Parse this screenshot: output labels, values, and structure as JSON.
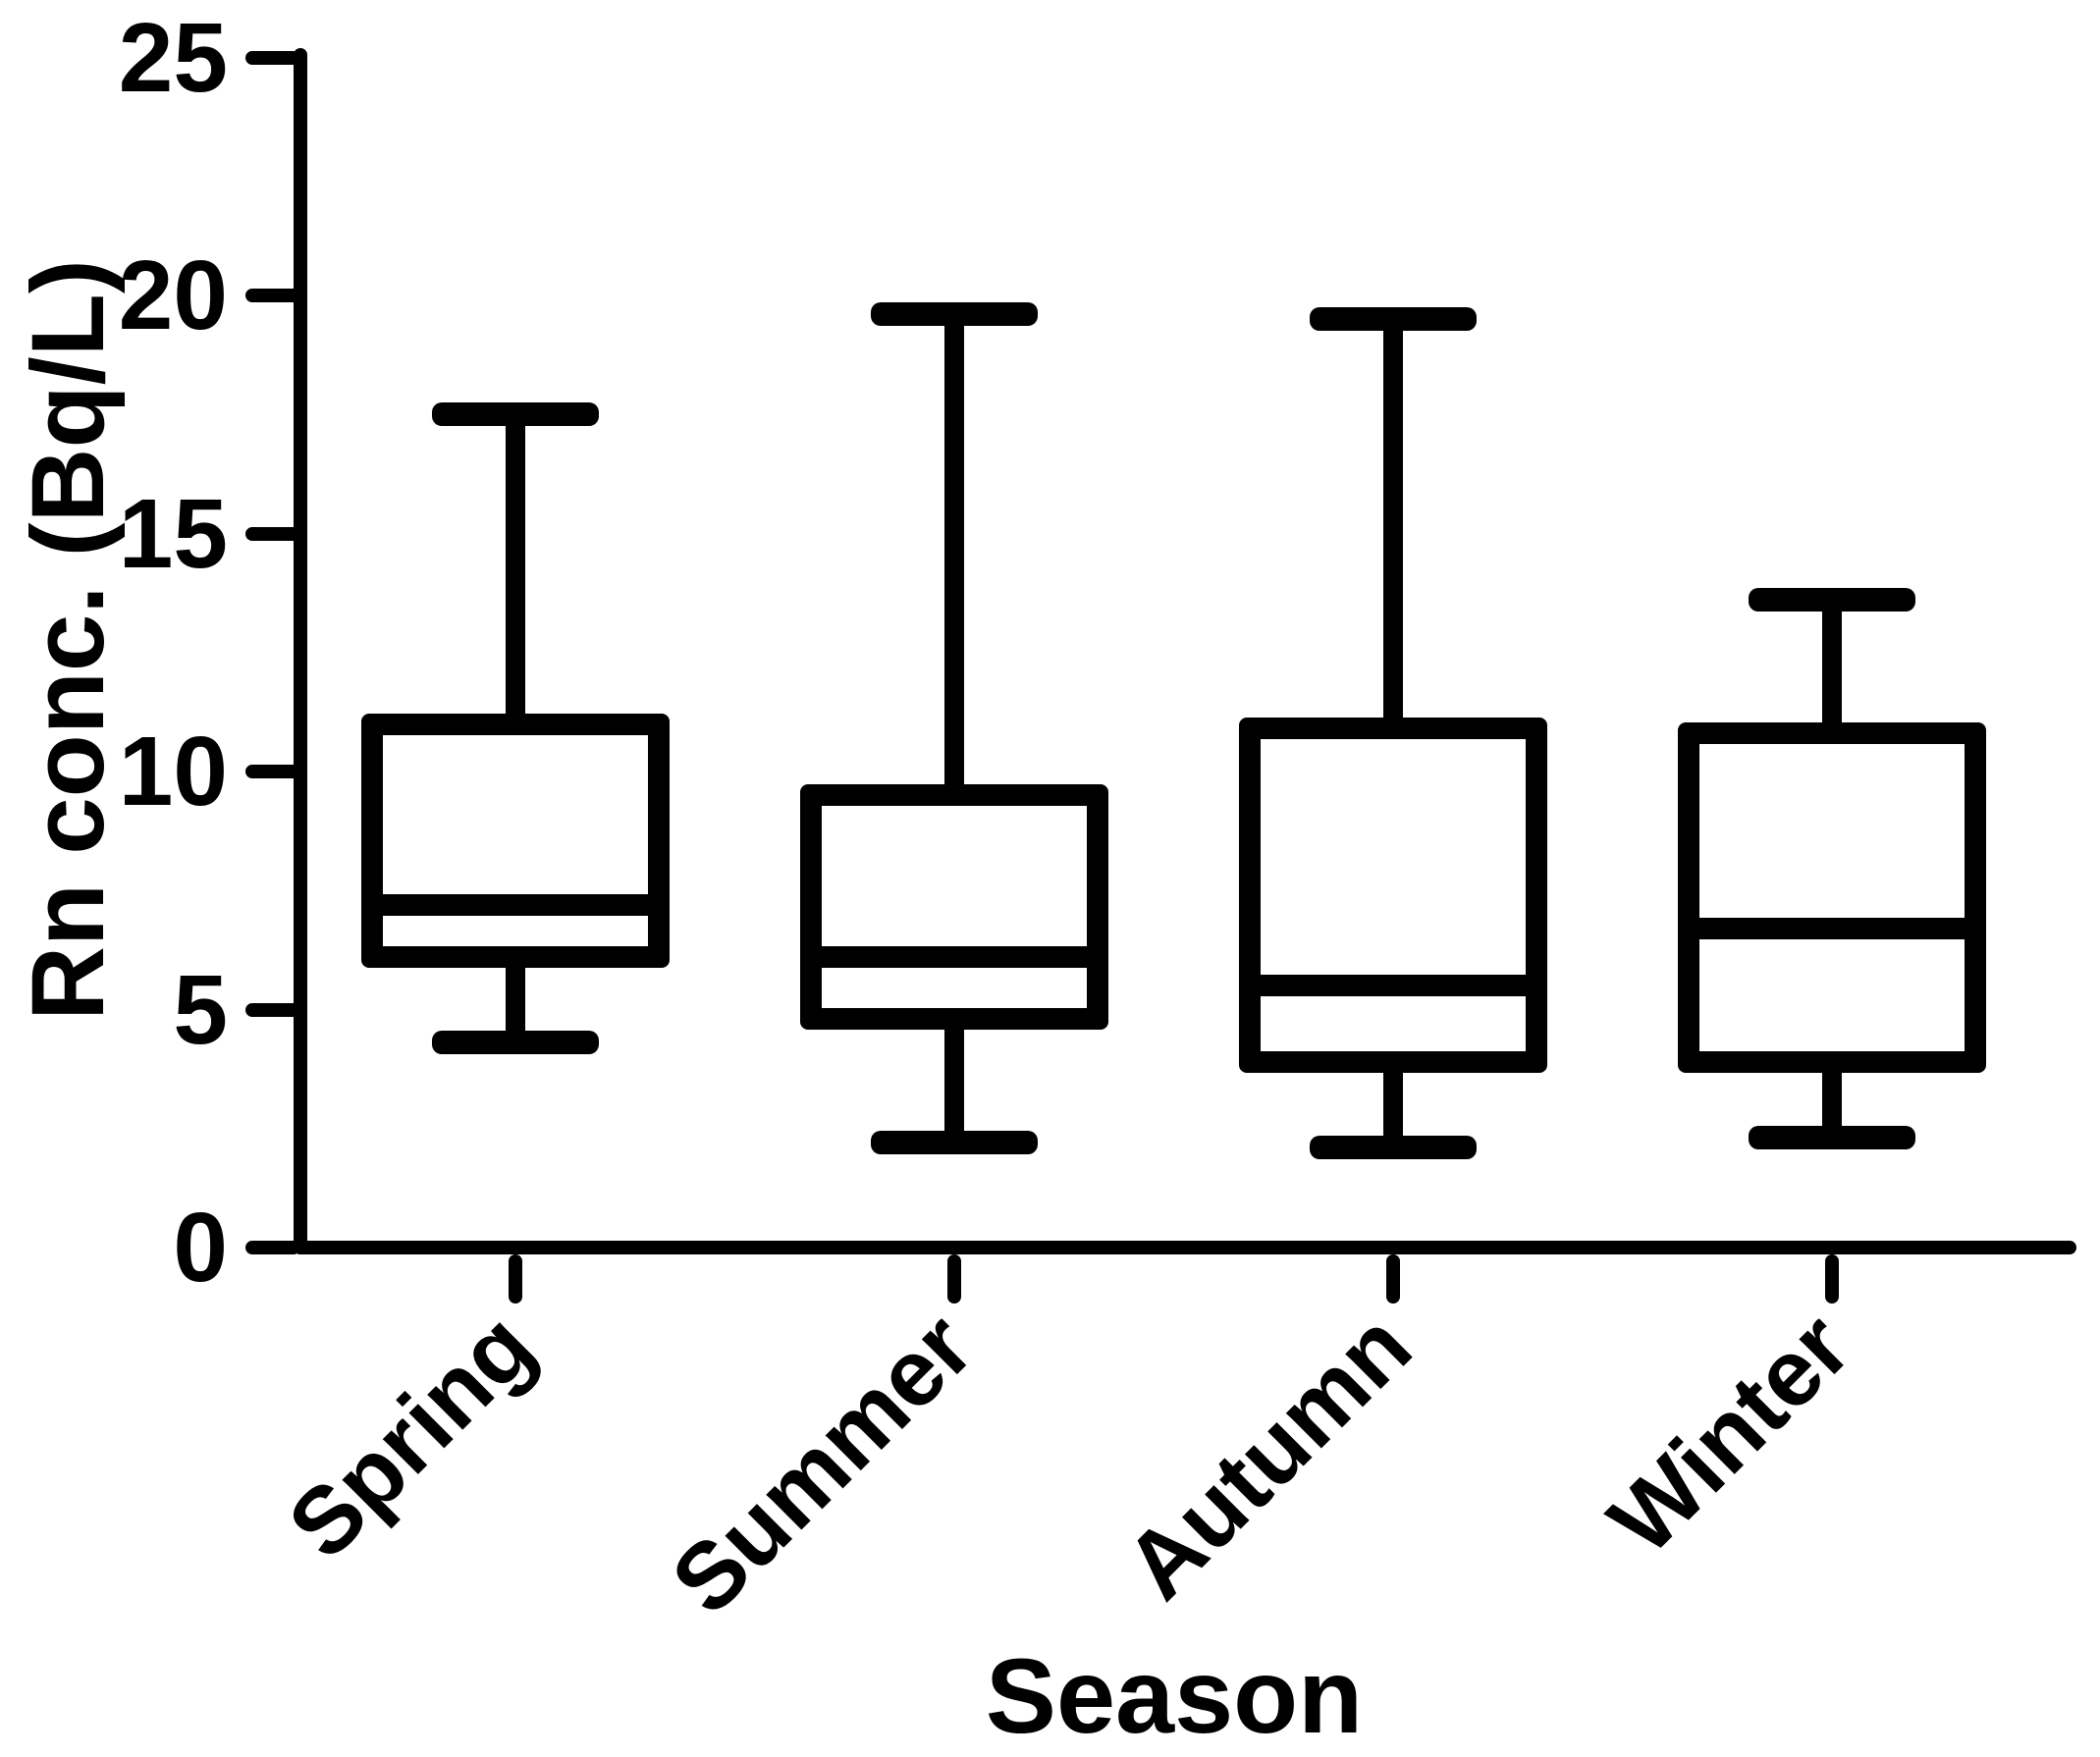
{
  "chart_data": {
    "type": "box",
    "title": "",
    "xlabel": "Season",
    "ylabel": "Rn conc. (Bq/L)",
    "ylim": [
      0,
      25
    ],
    "yticks": [
      0,
      5,
      10,
      15,
      20,
      25
    ],
    "grid": false,
    "legend": null,
    "categories": [
      "Spring",
      "Summer",
      "Autumn",
      "Winter"
    ],
    "series": [
      {
        "name": "Spring",
        "min": 4.3,
        "q1": 6.1,
        "median": 7.2,
        "q3": 11.0,
        "max": 17.5
      },
      {
        "name": "Summer",
        "min": 2.2,
        "q1": 4.8,
        "median": 6.1,
        "q3": 9.5,
        "max": 19.6
      },
      {
        "name": "Autumn",
        "min": 2.1,
        "q1": 3.9,
        "median": 5.5,
        "q3": 10.9,
        "max": 19.5
      },
      {
        "name": "Winter",
        "min": 2.3,
        "q1": 3.9,
        "median": 6.7,
        "q3": 10.8,
        "max": 13.6
      }
    ],
    "colors": {
      "stroke": "#000000",
      "background": "#ffffff"
    }
  }
}
